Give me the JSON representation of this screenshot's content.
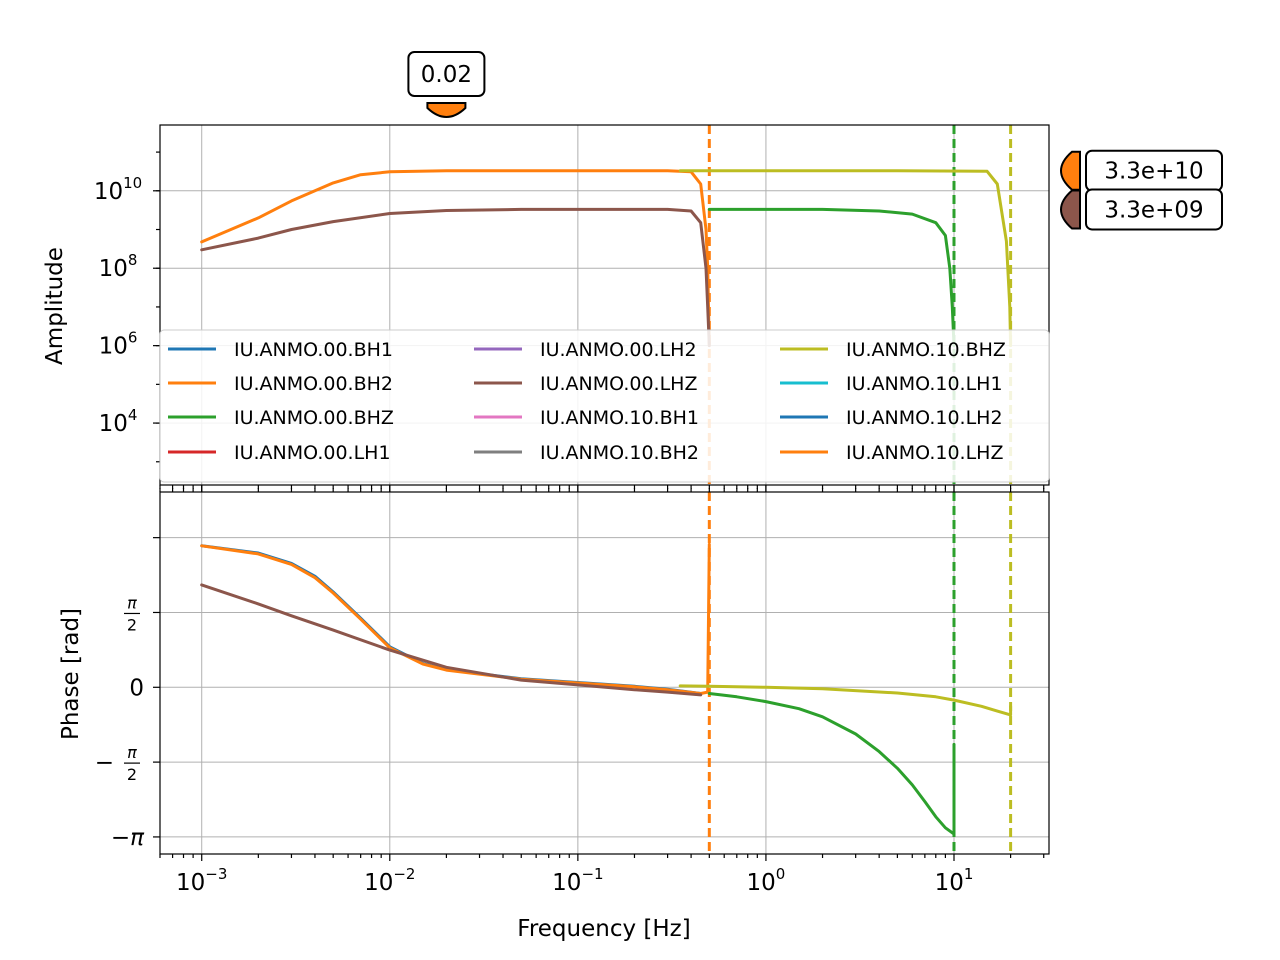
{
  "figure": {
    "xlabel": "Frequency [Hz]"
  },
  "amplitude_panel": {
    "ylabel": "Amplitude",
    "y_ticks": [
      {
        "exp": 4,
        "label": "10",
        "sup": "4"
      },
      {
        "exp": 6,
        "label": "10",
        "sup": "6"
      },
      {
        "exp": 8,
        "label": "10",
        "sup": "8"
      },
      {
        "exp": 10,
        "label": "10",
        "sup": "10"
      }
    ]
  },
  "phase_panel": {
    "ylabel": "Phase [rad]",
    "y_ticks": [
      {
        "value": 1.5708,
        "label": "π/2"
      },
      {
        "value": 0,
        "label": "0"
      },
      {
        "value": -1.5708,
        "label": "−π/2"
      },
      {
        "value": -3.1416,
        "label": "−π"
      }
    ]
  },
  "x_ticks": [
    {
      "exp": -3,
      "label": "10",
      "sup": "−3"
    },
    {
      "exp": -2,
      "label": "10",
      "sup": "−2"
    },
    {
      "exp": -1,
      "label": "10",
      "sup": "−1"
    },
    {
      "exp": 0,
      "label": "10",
      "sup": "0"
    },
    {
      "exp": 1,
      "label": "10",
      "sup": "1"
    }
  ],
  "markers": {
    "top": {
      "label": "0.02",
      "x": 0.02,
      "color": "#ff7f0e"
    },
    "right": [
      {
        "label": "3.3e+10",
        "y": 33000000000.0,
        "color": "#ff7f0e"
      },
      {
        "label": "3.3e+09",
        "y": 3300000000.0,
        "color": "#8c564b"
      }
    ]
  },
  "legend": {
    "placement": "lower center of amplitude panel",
    "columns": 3,
    "entries": [
      {
        "name": "IU.ANMO.00.BH1",
        "color": "#1f77b4"
      },
      {
        "name": "IU.ANMO.00.BH2",
        "color": "#ff7f0e"
      },
      {
        "name": "IU.ANMO.00.BHZ",
        "color": "#2ca02c"
      },
      {
        "name": "IU.ANMO.00.LH1",
        "color": "#d62728"
      },
      {
        "name": "IU.ANMO.00.LH2",
        "color": "#9467bd"
      },
      {
        "name": "IU.ANMO.00.LHZ",
        "color": "#8c564b"
      },
      {
        "name": "IU.ANMO.10.BH1",
        "color": "#e377c2"
      },
      {
        "name": "IU.ANMO.10.BH2",
        "color": "#7f7f7f"
      },
      {
        "name": "IU.ANMO.10.BHZ",
        "color": "#bcbd22"
      },
      {
        "name": "IU.ANMO.10.LH1",
        "color": "#17becf"
      },
      {
        "name": "IU.ANMO.10.LH2",
        "color": "#1f77b4"
      },
      {
        "name": "IU.ANMO.10.LHZ",
        "color": "#ff7f0e"
      }
    ]
  },
  "chart_data": [
    {
      "type": "line",
      "panel": "amplitude",
      "ylabel": "Amplitude",
      "x_scale": "log",
      "y_scale": "log",
      "xlim": [
        0.0006,
        32
      ],
      "ylim_log10": [
        2.4,
        11.7
      ],
      "grid": true,
      "nyquist_lines": [
        {
          "x": 0.5,
          "color": "#ff7f0e"
        },
        {
          "x": 10,
          "color": "#2ca02c"
        },
        {
          "x": 20,
          "color": "#bcbd22"
        }
      ],
      "series": [
        {
          "name": "IU.ANMO.00.BH2",
          "color": "#ff7f0e",
          "points": [
            [
              0.001,
              480000000.0
            ],
            [
              0.002,
              2000000000.0
            ],
            [
              0.003,
              5500000000.0
            ],
            [
              0.005,
              16000000000.0
            ],
            [
              0.007,
              26000000000.0
            ],
            [
              0.01,
              31000000000.0
            ],
            [
              0.02,
              33000000000.0
            ],
            [
              0.05,
              33000000000.0
            ],
            [
              0.1,
              33000000000.0
            ],
            [
              0.3,
              33000000000.0
            ],
            [
              0.4,
              31000000000.0
            ],
            [
              0.45,
              15000000000.0
            ],
            [
              0.48,
              1000000000.0
            ],
            [
              0.49,
              100000000.0
            ],
            [
              0.5,
              1000000.0
            ]
          ]
        },
        {
          "name": "IU.ANMO.00.LHZ",
          "color": "#8c564b",
          "points": [
            [
              0.001,
              300000000.0
            ],
            [
              0.002,
              600000000.0
            ],
            [
              0.003,
              1000000000.0
            ],
            [
              0.005,
              1600000000.0
            ],
            [
              0.01,
              2600000000.0
            ],
            [
              0.02,
              3100000000.0
            ],
            [
              0.05,
              3300000000.0
            ],
            [
              0.1,
              3300000000.0
            ],
            [
              0.3,
              3300000000.0
            ],
            [
              0.4,
              3000000000.0
            ],
            [
              0.45,
              1500000000.0
            ],
            [
              0.48,
              100000000.0
            ],
            [
              0.49,
              10000000.0
            ],
            [
              0.5,
              1000000.0
            ]
          ]
        },
        {
          "name": "IU.ANMO.00.BHZ",
          "color": "#2ca02c",
          "points": [
            [
              0.5,
              3300000000.0
            ],
            [
              1,
              3300000000.0
            ],
            [
              2,
              3300000000.0
            ],
            [
              4,
              3000000000.0
            ],
            [
              6,
              2500000000.0
            ],
            [
              8,
              1500000000.0
            ],
            [
              9,
              700000000.0
            ],
            [
              9.5,
              100000000.0
            ],
            [
              9.8,
              10000000.0
            ],
            [
              10,
              1000000.0
            ]
          ]
        },
        {
          "name": "IU.ANMO.10.BHZ",
          "color": "#bcbd22",
          "points": [
            [
              0.35,
              33000000000.0
            ],
            [
              1,
              33000000000.0
            ],
            [
              5,
              33000000000.0
            ],
            [
              15,
              32000000000.0
            ],
            [
              17,
              15000000000.0
            ],
            [
              19,
              500000000.0
            ],
            [
              19.8,
              10000000.0
            ],
            [
              20,
              1000000.0
            ]
          ]
        }
      ]
    },
    {
      "type": "line",
      "panel": "phase",
      "ylabel": "Phase [rad]",
      "x_scale": "log",
      "xlim": [
        0.0006,
        32
      ],
      "ylim": [
        -3.5,
        4.1
      ],
      "grid": true,
      "nyquist_lines": [
        {
          "x": 0.5,
          "color": "#ff7f0e"
        },
        {
          "x": 10,
          "color": "#2ca02c"
        },
        {
          "x": 20,
          "color": "#bcbd22"
        }
      ],
      "series": [
        {
          "name": "IU.ANMO.00.BH1",
          "color": "#1f77b4",
          "points": [
            [
              0.001,
              2.97
            ],
            [
              0.002,
              2.82
            ],
            [
              0.003,
              2.6
            ],
            [
              0.004,
              2.33
            ],
            [
              0.005,
              2.0
            ],
            [
              0.007,
              1.45
            ],
            [
              0.01,
              0.85
            ],
            [
              0.015,
              0.5
            ],
            [
              0.02,
              0.37
            ],
            [
              0.05,
              0.18
            ],
            [
              0.1,
              0.1
            ],
            [
              0.2,
              0.02
            ],
            [
              0.3,
              -0.04
            ],
            [
              0.45,
              -0.13
            ]
          ]
        },
        {
          "name": "IU.ANMO.00.BH2",
          "color": "#ff7f0e",
          "points": [
            [
              0.001,
              2.97
            ],
            [
              0.002,
              2.8
            ],
            [
              0.003,
              2.58
            ],
            [
              0.004,
              2.3
            ],
            [
              0.005,
              1.98
            ],
            [
              0.007,
              1.43
            ],
            [
              0.01,
              0.83
            ],
            [
              0.015,
              0.49
            ],
            [
              0.02,
              0.36
            ],
            [
              0.05,
              0.17
            ],
            [
              0.1,
              0.09
            ],
            [
              0.2,
              0.01
            ],
            [
              0.3,
              -0.05
            ],
            [
              0.45,
              -0.13
            ],
            [
              0.49,
              -0.1
            ],
            [
              0.5,
              3.0
            ]
          ]
        },
        {
          "name": "IU.ANMO.00.LHZ",
          "color": "#8c564b",
          "points": [
            [
              0.001,
              2.15
            ],
            [
              0.002,
              1.75
            ],
            [
              0.003,
              1.5
            ],
            [
              0.005,
              1.2
            ],
            [
              0.01,
              0.78
            ],
            [
              0.02,
              0.42
            ],
            [
              0.05,
              0.15
            ],
            [
              0.1,
              0.05
            ],
            [
              0.2,
              -0.05
            ],
            [
              0.3,
              -0.1
            ],
            [
              0.45,
              -0.16
            ]
          ]
        },
        {
          "name": "IU.ANMO.00.BHZ",
          "color": "#2ca02c",
          "points": [
            [
              0.5,
              -0.13
            ],
            [
              0.7,
              -0.2
            ],
            [
              1,
              -0.3
            ],
            [
              1.5,
              -0.45
            ],
            [
              2,
              -0.62
            ],
            [
              3,
              -0.98
            ],
            [
              4,
              -1.35
            ],
            [
              5,
              -1.7
            ],
            [
              6,
              -2.05
            ],
            [
              7,
              -2.4
            ],
            [
              8,
              -2.72
            ],
            [
              9,
              -2.95
            ],
            [
              10,
              -3.08
            ],
            [
              10,
              -1.2
            ]
          ]
        },
        {
          "name": "IU.ANMO.10.BHZ",
          "color": "#bcbd22",
          "points": [
            [
              0.35,
              0.03
            ],
            [
              0.5,
              0.02
            ],
            [
              1,
              0.0
            ],
            [
              2,
              -0.03
            ],
            [
              5,
              -0.12
            ],
            [
              8,
              -0.2
            ],
            [
              10,
              -0.27
            ],
            [
              14,
              -0.4
            ],
            [
              17,
              -0.5
            ],
            [
              20,
              -0.58
            ],
            [
              20,
              -0.4
            ]
          ]
        }
      ]
    }
  ]
}
